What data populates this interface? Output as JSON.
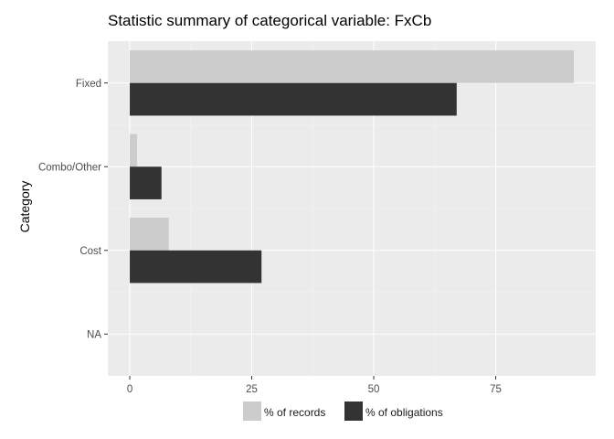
{
  "chart_data": {
    "type": "bar",
    "orientation": "horizontal",
    "title": "Statistic summary of categorical variable:  FxCb",
    "xlabel": "",
    "ylabel": "Category",
    "categories": [
      "Fixed",
      "Combo/Other",
      "Cost",
      "NA"
    ],
    "series": [
      {
        "name": "% of records",
        "values": [
          91,
          1.5,
          8,
          0
        ],
        "color": "#cccccc"
      },
      {
        "name": "% of obligations",
        "values": [
          67,
          6.5,
          27,
          0
        ],
        "color": "#333333"
      }
    ],
    "xlim": [
      -4.5,
      95.5
    ],
    "xticks": [
      0,
      25,
      50,
      75
    ],
    "xtick_labels": [
      "0",
      "25",
      "50",
      "75"
    ],
    "grid": true,
    "legend_position": "bottom",
    "colors": {
      "panel_background": "#ebebeb",
      "grid_major": "#ffffff",
      "grid_minor": "#f4f4f4"
    }
  }
}
